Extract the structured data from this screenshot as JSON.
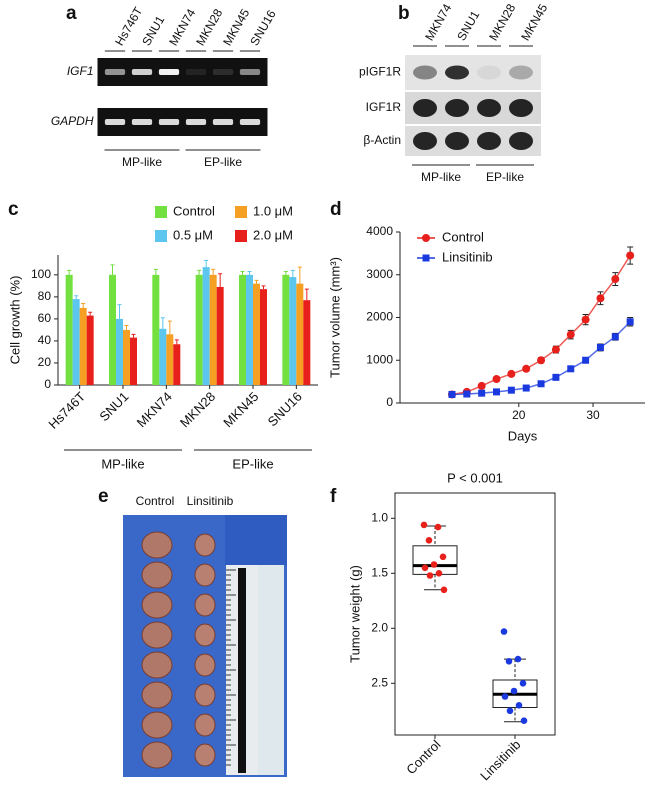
{
  "figure": {
    "panel_a": {
      "label": "a",
      "lanes": [
        "Hs746T",
        "SNU1",
        "MKN74",
        "MKN28",
        "MKN45",
        "SNU16"
      ],
      "rows": [
        "IGF1",
        "GAPDH"
      ],
      "groups": [
        "MP-like",
        "EP-like"
      ]
    },
    "panel_b": {
      "label": "b",
      "lanes": [
        "MKN74",
        "SNU1",
        "MKN28",
        "MKN45"
      ],
      "rows": [
        "pIGF1R",
        "IGF1R",
        "β-Actin"
      ],
      "groups": [
        "MP-like",
        "EP-like"
      ]
    },
    "panel_e": {
      "label": "e",
      "columns": [
        "Control",
        "Linsitinib"
      ]
    }
  },
  "chart_data": [
    {
      "panel": "c",
      "type": "bar",
      "y_label": "Cell growth (%)",
      "categories": [
        "Hs746T",
        "SNU1",
        "MKN74",
        "MKN28",
        "MKN45",
        "SNU16"
      ],
      "groups": [
        "MP-like",
        "EP-like"
      ],
      "ylim": [
        0,
        118
      ],
      "yticks": [
        0,
        20,
        40,
        60,
        80,
        100
      ],
      "series": [
        {
          "name": "Control",
          "color": "#72e03e",
          "values": [
            100,
            100,
            100,
            100,
            100,
            100
          ],
          "errors": [
            4,
            9,
            5,
            4,
            3,
            3
          ]
        },
        {
          "name": "0.5 μM",
          "color": "#5cc6ee",
          "values": [
            78,
            60,
            51,
            107,
            100,
            98
          ],
          "errors": [
            3,
            13,
            10,
            6,
            3,
            6
          ]
        },
        {
          "name": "1.0 μM",
          "color": "#f5a023",
          "values": [
            70,
            50,
            46,
            100,
            92,
            92
          ],
          "errors": [
            4,
            4,
            12,
            5,
            3,
            15
          ]
        },
        {
          "name": "2.0 μM",
          "color": "#e8201c",
          "values": [
            63,
            43,
            37,
            89,
            87,
            77
          ],
          "errors": [
            3,
            3,
            4,
            12,
            3,
            10
          ]
        }
      ]
    },
    {
      "panel": "d",
      "type": "line",
      "x_label": "Days",
      "y_label": "Tumor volume (mm³)",
      "x": [
        11,
        13,
        15,
        17,
        19,
        21,
        23,
        25,
        27,
        29,
        31,
        33,
        35
      ],
      "xlim": [
        4,
        37
      ],
      "xticks": [
        20,
        30
      ],
      "ylim": [
        0,
        4000
      ],
      "yticks": [
        0,
        1000,
        2000,
        3000,
        4000
      ],
      "series": [
        {
          "name": "Control",
          "color": "#e8201c",
          "values": [
            200,
            260,
            400,
            560,
            680,
            800,
            1000,
            1250,
            1600,
            1950,
            2450,
            2900,
            3450
          ],
          "errors": [
            20,
            30,
            40,
            60,
            50,
            50,
            60,
            80,
            100,
            120,
            150,
            150,
            200
          ]
        },
        {
          "name": "Linsitinib",
          "color": "#1a3ae0",
          "values": [
            200,
            210,
            230,
            260,
            300,
            350,
            450,
            600,
            800,
            1000,
            1300,
            1550,
            1900
          ],
          "errors": [
            20,
            20,
            20,
            30,
            30,
            30,
            40,
            40,
            50,
            60,
            80,
            80,
            100
          ]
        }
      ]
    },
    {
      "panel": "f",
      "type": "box",
      "title": "P < 0.001",
      "y_label": "Tumor weight (g)",
      "categories": [
        "Control",
        "Linsitinib"
      ],
      "colors": [
        "#e8201c",
        "#1a3ae0"
      ],
      "values": [
        [
          1.06,
          1.08,
          1.2,
          1.35,
          1.42,
          1.45,
          1.5,
          1.52,
          1.65
        ],
        [
          2.03,
          2.28,
          2.3,
          2.5,
          2.57,
          2.62,
          2.7,
          2.75,
          2.84
        ]
      ],
      "boxes": [
        {
          "low": 1.07,
          "q1": 1.25,
          "median": 1.43,
          "q3": 1.51,
          "high": 1.65
        },
        {
          "low": 2.28,
          "q1": 2.47,
          "median": 2.6,
          "q3": 2.72,
          "high": 2.85
        }
      ],
      "ylim": [
        2.97,
        0.77
      ],
      "yticks": [
        {
          "value": 1,
          "label": "1.0"
        },
        1.5,
        {
          "value": 2,
          "label": "2.0"
        },
        2.5
      ]
    }
  ]
}
